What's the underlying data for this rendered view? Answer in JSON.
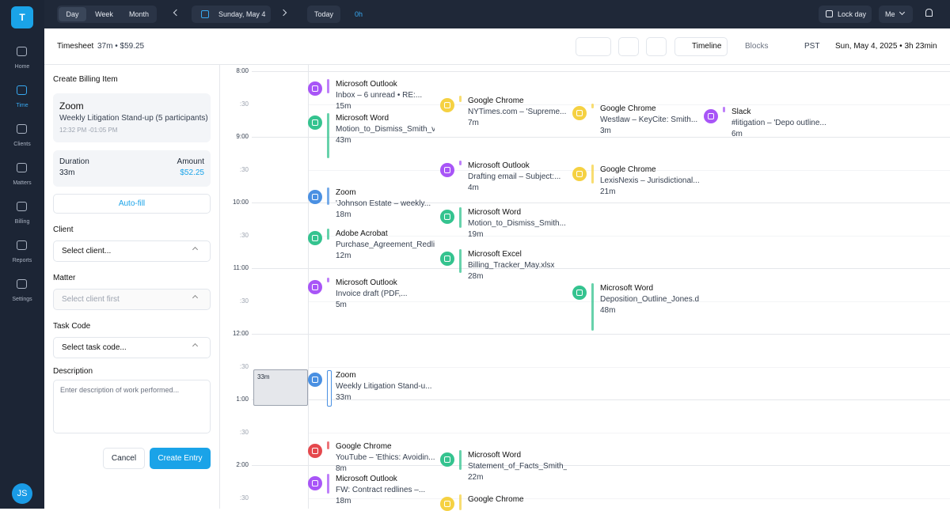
{
  "sidebar": {
    "logo": "T",
    "nav": [
      "Home",
      "Time",
      "Clients",
      "Matters",
      "Billing",
      "Reports",
      "Settings"
    ],
    "avatar": "JS"
  },
  "topbar": {
    "views": [
      "Day",
      "Week",
      "Month"
    ],
    "date": "Sunday, May 4",
    "today": "Today",
    "hours": "0h",
    "lock": "Lock day",
    "user": "Me"
  },
  "subheader": {
    "title": "Timesheet",
    "summary": "37m • $59.25",
    "tabs": [
      "Timeline",
      "Blocks"
    ],
    "timezone": "PST",
    "date": "Sun, May 4, 2025 • 3h 23min"
  },
  "form": {
    "title": "Create Billing Item",
    "source": {
      "app": "Zoom",
      "name": "Weekly Litigation Stand-up (5 participants)",
      "time": "12:32 PM -01:05 PM"
    },
    "duration_label": "Duration",
    "duration": "33m",
    "amount_label": "Amount",
    "amount": "$52.25",
    "autofill": "Auto-fill",
    "client_label": "Client",
    "client_placeholder": "Select client...",
    "matter_label": "Matter",
    "matter_placeholder": "Select client first",
    "task_label": "Task Code",
    "task_placeholder": "Select task code...",
    "description_label": "Description",
    "description_placeholder": "Enter description of work performed...",
    "cancel": "Cancel",
    "submit": "Create Entry"
  },
  "timeline": {
    "labels": [
      "8:00",
      ":30",
      "9:00",
      ":30",
      "10:00",
      ":30",
      "11:00",
      ":30",
      "12:00",
      ":30",
      "1:00",
      ":30",
      "2:00",
      ":30"
    ],
    "selection": "33m",
    "events": [
      {
        "app": "Microsoft Outlook",
        "detail": "Inbox – 6 unread • RE:...",
        "duration": "15m",
        "color": "#a855f7"
      },
      {
        "app": "Microsoft Word",
        "detail": "Motion_to_Dismiss_Smith_v",
        "duration": "43m",
        "color": "#34c38f"
      },
      {
        "app": "Zoom",
        "detail": "'Johnson Estate – weekly...",
        "duration": "18m",
        "color": "#4a90e2"
      },
      {
        "app": "Adobe Acrobat",
        "detail": "Purchase_Agreement_Redline",
        "duration": "12m",
        "color": "#34c38f"
      },
      {
        "app": "Microsoft Outlook",
        "detail": "Invoice draft (PDF,...",
        "duration": "5m",
        "color": "#a855f7"
      },
      {
        "app": "Zoom",
        "detail": "Weekly Litigation Stand-u...",
        "duration": "33m",
        "color": "#4a90e2"
      },
      {
        "app": "Google Chrome",
        "detail": "YouTube – 'Ethics: Avoidin...",
        "duration": "8m",
        "color": "#e5484d"
      },
      {
        "app": "Microsoft Outlook",
        "detail": "FW: Contract redlines –...",
        "duration": "18m",
        "color": "#a855f7"
      },
      {
        "app": "Google Chrome",
        "detail": "NYTimes.com – 'Supreme...",
        "duration": "7m",
        "color": "#f5d142"
      },
      {
        "app": "Microsoft Outlook",
        "detail": "Drafting email – Subject:...",
        "duration": "4m",
        "color": "#a855f7"
      },
      {
        "app": "Microsoft Word",
        "detail": "Motion_to_Dismiss_Smith...",
        "duration": "19m",
        "color": "#34c38f"
      },
      {
        "app": "Microsoft Excel",
        "detail": "Billing_Tracker_May.xlsx",
        "duration": "28m",
        "color": "#34c38f"
      },
      {
        "app": "Microsoft Word",
        "detail": "Statement_of_Facts_Smith_v",
        "duration": "22m",
        "color": "#34c38f"
      },
      {
        "app": "Google Chrome",
        "color": "#f5d142"
      },
      {
        "app": "Google Chrome",
        "detail": "Westlaw – KeyCite: Smith...",
        "duration": "3m",
        "color": "#f5d142"
      },
      {
        "app": "Google Chrome",
        "detail": "LexisNexis – Jurisdictional...",
        "duration": "21m",
        "color": "#f5d142"
      },
      {
        "app": "Microsoft Word",
        "detail": "Deposition_Outline_Jones.docx",
        "duration": "48m",
        "color": "#34c38f"
      },
      {
        "app": "Slack",
        "detail": "#litigation – 'Depo outline...",
        "duration": "6m",
        "color": "#a855f7"
      }
    ]
  }
}
